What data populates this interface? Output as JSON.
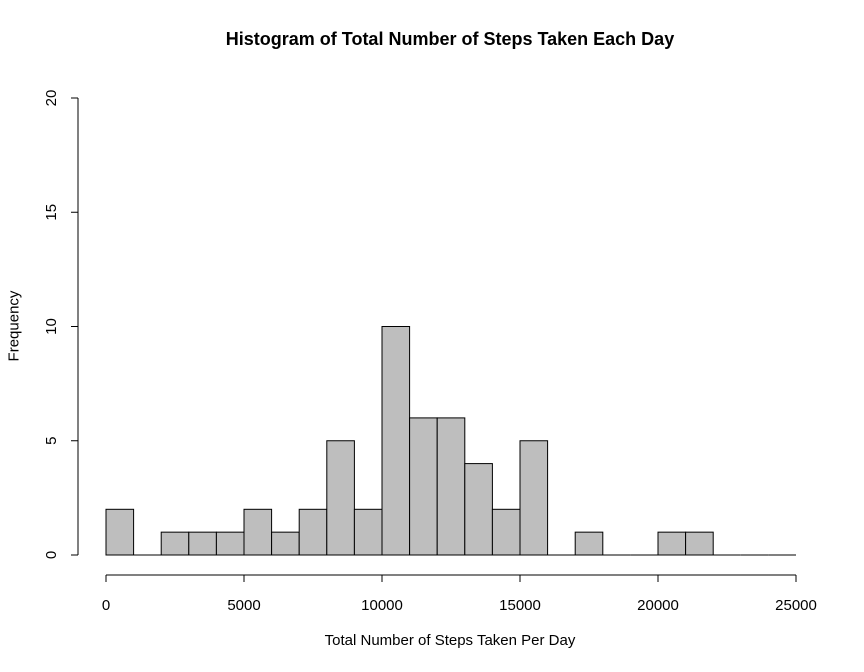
{
  "chart_data": {
    "type": "bar",
    "subtype": "histogram",
    "title": "Histogram of Total Number of Steps Taken Each Day",
    "xlabel": "Total Number of Steps Taken Per Day",
    "ylabel": "Frequency",
    "bin_width": 1000,
    "bins": [
      {
        "start": 0,
        "end": 1000,
        "count": 2
      },
      {
        "start": 1000,
        "end": 2000,
        "count": 0
      },
      {
        "start": 2000,
        "end": 3000,
        "count": 1
      },
      {
        "start": 3000,
        "end": 4000,
        "count": 1
      },
      {
        "start": 4000,
        "end": 5000,
        "count": 1
      },
      {
        "start": 5000,
        "end": 6000,
        "count": 2
      },
      {
        "start": 6000,
        "end": 7000,
        "count": 1
      },
      {
        "start": 7000,
        "end": 8000,
        "count": 2
      },
      {
        "start": 8000,
        "end": 9000,
        "count": 5
      },
      {
        "start": 9000,
        "end": 10000,
        "count": 2
      },
      {
        "start": 10000,
        "end": 11000,
        "count": 10
      },
      {
        "start": 11000,
        "end": 12000,
        "count": 6
      },
      {
        "start": 12000,
        "end": 13000,
        "count": 6
      },
      {
        "start": 13000,
        "end": 14000,
        "count": 4
      },
      {
        "start": 14000,
        "end": 15000,
        "count": 2
      },
      {
        "start": 15000,
        "end": 16000,
        "count": 5
      },
      {
        "start": 16000,
        "end": 17000,
        "count": 0
      },
      {
        "start": 17000,
        "end": 18000,
        "count": 1
      },
      {
        "start": 18000,
        "end": 19000,
        "count": 0
      },
      {
        "start": 19000,
        "end": 20000,
        "count": 0
      },
      {
        "start": 20000,
        "end": 21000,
        "count": 1
      },
      {
        "start": 21000,
        "end": 22000,
        "count": 1
      },
      {
        "start": 22000,
        "end": 23000,
        "count": 0
      },
      {
        "start": 23000,
        "end": 24000,
        "count": 0
      },
      {
        "start": 24000,
        "end": 25000,
        "count": 0
      }
    ],
    "xlim": [
      0,
      25000
    ],
    "ylim": [
      0,
      20
    ],
    "xticks": [
      0,
      5000,
      10000,
      15000,
      20000,
      25000
    ],
    "yticks": [
      0,
      5,
      10,
      15,
      20
    ],
    "grid": false,
    "bar_color": "#bebebe",
    "edge_color": "#000000"
  }
}
